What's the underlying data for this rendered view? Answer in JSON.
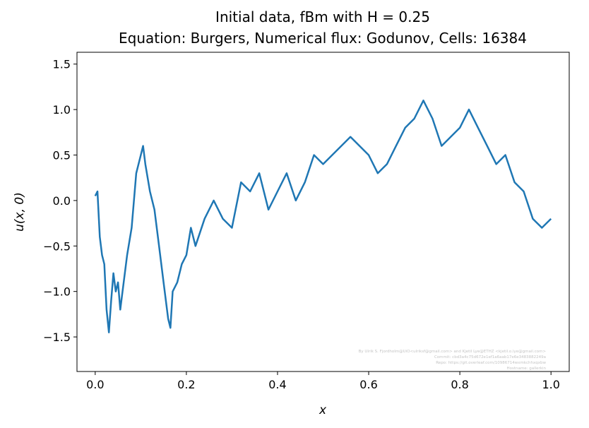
{
  "chart_data": {
    "type": "line",
    "title_line1": "Initial data, fBm with H = 0.25",
    "title_line2": "Equation: Burgers, Numerical flux: Godunov, Cells: 16384",
    "xlabel": "x",
    "ylabel": "u(x, 0)",
    "xlim": [
      -0.04,
      1.04
    ],
    "ylim": [
      -1.88,
      1.63
    ],
    "xticks": [
      0.0,
      0.2,
      0.4,
      0.6,
      0.8,
      1.0
    ],
    "xtick_labels": [
      "0.0",
      "0.2",
      "0.4",
      "0.6",
      "0.8",
      "1.0"
    ],
    "yticks": [
      -1.5,
      -1.0,
      -0.5,
      0.0,
      0.5,
      1.0,
      1.5
    ],
    "ytick_labels": [
      "−1.5",
      "−1.0",
      "−0.5",
      "0.0",
      "0.5",
      "1.0",
      "1.5"
    ],
    "grid": false,
    "line_color": "#1f77b4",
    "series": [
      {
        "x": [
          0.0,
          0.005,
          0.01,
          0.015,
          0.02,
          0.025,
          0.03,
          0.035,
          0.04,
          0.045,
          0.05,
          0.055,
          0.06,
          0.07,
          0.08,
          0.09,
          0.1,
          0.105,
          0.11,
          0.12,
          0.13,
          0.14,
          0.15,
          0.16,
          0.165,
          0.17,
          0.18,
          0.19,
          0.2,
          0.21,
          0.22,
          0.24,
          0.26,
          0.28,
          0.3,
          0.32,
          0.34,
          0.36,
          0.38,
          0.4,
          0.42,
          0.44,
          0.46,
          0.48,
          0.5,
          0.52,
          0.54,
          0.56,
          0.58,
          0.6,
          0.62,
          0.64,
          0.66,
          0.68,
          0.7,
          0.72,
          0.74,
          0.76,
          0.78,
          0.8,
          0.82,
          0.84,
          0.86,
          0.88,
          0.9,
          0.92,
          0.94,
          0.96,
          0.98,
          1.0
        ],
        "y": [
          0.05,
          0.1,
          -0.4,
          -0.6,
          -0.7,
          -1.2,
          -1.45,
          -1.1,
          -0.8,
          -1.0,
          -0.9,
          -1.2,
          -1.0,
          -0.6,
          -0.3,
          0.3,
          0.5,
          0.6,
          0.4,
          0.1,
          -0.1,
          -0.5,
          -0.9,
          -1.3,
          -1.4,
          -1.0,
          -0.9,
          -0.7,
          -0.6,
          -0.3,
          -0.5,
          -0.2,
          0.0,
          -0.2,
          -0.3,
          0.2,
          0.1,
          0.3,
          -0.1,
          0.1,
          0.3,
          0.0,
          0.2,
          0.5,
          0.4,
          0.5,
          0.6,
          0.7,
          0.6,
          0.5,
          0.3,
          0.4,
          0.6,
          0.8,
          0.9,
          1.1,
          0.9,
          0.6,
          0.7,
          0.8,
          1.0,
          0.8,
          0.6,
          0.4,
          0.5,
          0.2,
          0.1,
          -0.2,
          -0.3,
          -0.2
        ]
      }
    ]
  },
  "credit": [
    "By Ulrik S. Fjordholm@UiO<ulriksf@gmail.com> and Kjetil Lye@ETHZ <kjetil.o.lye@gmail.com>",
    "Commit: cbd3a4c75d672e1ef1a6aab17e6e3483882249a",
    "Repo: https://git.overleaf.com/10986714wxmkchhxqxbw",
    "Hostname: gallerkin"
  ]
}
